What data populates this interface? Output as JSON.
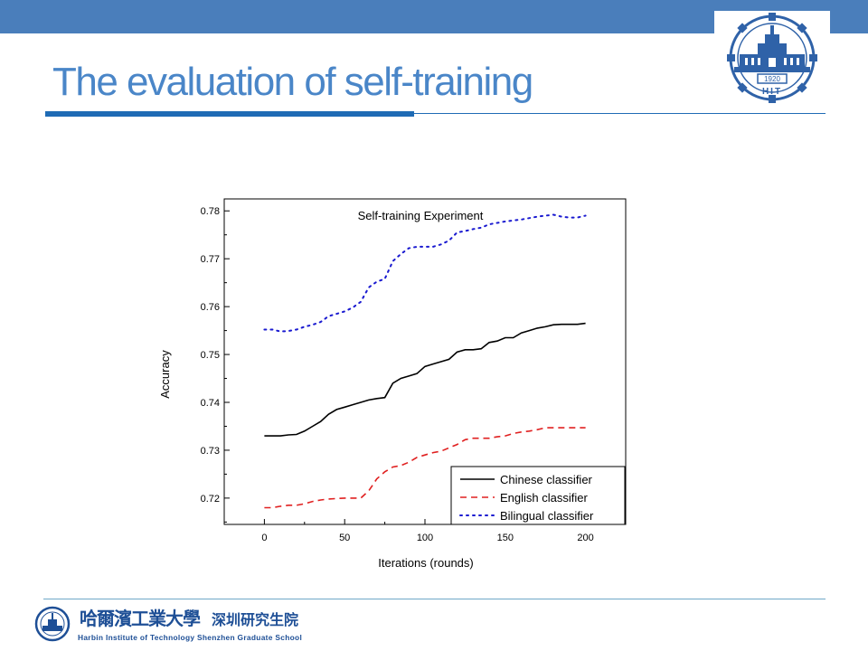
{
  "slide": {
    "title": "The evaluation of self-training"
  },
  "footer": {
    "university_cn": "哈爾濱工業大學",
    "campus_cn": "深圳研究生院",
    "university_en": "Harbin Institute of Technology Shenzhen Graduate School"
  },
  "logo": {
    "year": "1920",
    "letters": "HIT"
  },
  "colors": {
    "top_bar": "#4a7ebb",
    "title": "#4a86c8",
    "rule": "#1f6bb5",
    "chinese_series": "#000000",
    "english_series": "#e02020",
    "bilingual_series": "#1a1ad0"
  },
  "chart_data": {
    "type": "line",
    "title": "Self-training Experiment",
    "xlabel": "Iterations (rounds)",
    "ylabel": "Accuracy",
    "xlim": [
      -25,
      225
    ],
    "ylim": [
      0.7145,
      0.7825
    ],
    "xticks": [
      0,
      50,
      100,
      150,
      200
    ],
    "yticks": [
      0.72,
      0.73,
      0.74,
      0.75,
      0.76,
      0.77,
      0.78
    ],
    "xtick_labels": [
      "0",
      "50",
      "100",
      "150",
      "200"
    ],
    "ytick_labels": [
      "0.72",
      "0.73",
      "0.74",
      "0.75",
      "0.76",
      "0.77",
      "0.78"
    ],
    "grid": false,
    "legend_position": "bottom-right",
    "series": [
      {
        "name": "Chinese classifier",
        "style": "solid",
        "x": [
          0,
          5,
          10,
          15,
          20,
          25,
          30,
          35,
          40,
          45,
          50,
          55,
          60,
          65,
          70,
          75,
          80,
          85,
          90,
          95,
          100,
          105,
          110,
          115,
          120,
          125,
          130,
          135,
          140,
          145,
          150,
          155,
          160,
          165,
          170,
          175,
          180,
          185,
          190,
          195,
          200
        ],
        "y": [
          0.733,
          0.733,
          0.733,
          0.7332,
          0.7333,
          0.734,
          0.735,
          0.736,
          0.7375,
          0.7385,
          0.739,
          0.7395,
          0.74,
          0.7405,
          0.7408,
          0.741,
          0.744,
          0.745,
          0.7455,
          0.746,
          0.7475,
          0.748,
          0.7485,
          0.749,
          0.7505,
          0.751,
          0.751,
          0.7512,
          0.7525,
          0.7528,
          0.7535,
          0.7535,
          0.7545,
          0.755,
          0.7555,
          0.7558,
          0.7562,
          0.7563,
          0.7563,
          0.7563,
          0.7565
        ]
      },
      {
        "name": "English classifier",
        "style": "dashed",
        "x": [
          0,
          5,
          10,
          15,
          20,
          25,
          30,
          35,
          40,
          45,
          50,
          55,
          60,
          65,
          70,
          75,
          80,
          85,
          90,
          95,
          100,
          105,
          110,
          115,
          120,
          125,
          130,
          135,
          140,
          145,
          150,
          155,
          160,
          165,
          170,
          175,
          180,
          185,
          190,
          195,
          200
        ],
        "y": [
          0.718,
          0.718,
          0.7183,
          0.7185,
          0.7185,
          0.7188,
          0.7193,
          0.7196,
          0.7198,
          0.7199,
          0.72,
          0.72,
          0.72,
          0.7215,
          0.724,
          0.7255,
          0.7265,
          0.7268,
          0.7275,
          0.7285,
          0.729,
          0.7295,
          0.7298,
          0.7305,
          0.7312,
          0.7322,
          0.7325,
          0.7325,
          0.7325,
          0.7328,
          0.733,
          0.7335,
          0.7338,
          0.734,
          0.7343,
          0.7347,
          0.7347,
          0.7347,
          0.7347,
          0.7347,
          0.7347
        ]
      },
      {
        "name": "Bilingual classifier",
        "style": "dotted",
        "x": [
          0,
          5,
          10,
          15,
          20,
          25,
          30,
          35,
          40,
          45,
          50,
          55,
          60,
          65,
          70,
          75,
          80,
          85,
          90,
          95,
          100,
          105,
          110,
          115,
          120,
          125,
          130,
          135,
          140,
          145,
          150,
          155,
          160,
          165,
          170,
          175,
          180,
          185,
          190,
          195,
          200
        ],
        "y": [
          0.7552,
          0.7552,
          0.7548,
          0.7549,
          0.7552,
          0.7558,
          0.7562,
          0.7568,
          0.758,
          0.7585,
          0.759,
          0.7598,
          0.761,
          0.764,
          0.7652,
          0.7658,
          0.7695,
          0.771,
          0.7722,
          0.7725,
          0.7725,
          0.7725,
          0.773,
          0.7738,
          0.7755,
          0.7758,
          0.7762,
          0.7765,
          0.7772,
          0.7775,
          0.7778,
          0.778,
          0.7782,
          0.7785,
          0.7788,
          0.779,
          0.7792,
          0.7788,
          0.7786,
          0.7786,
          0.779
        ]
      }
    ]
  }
}
